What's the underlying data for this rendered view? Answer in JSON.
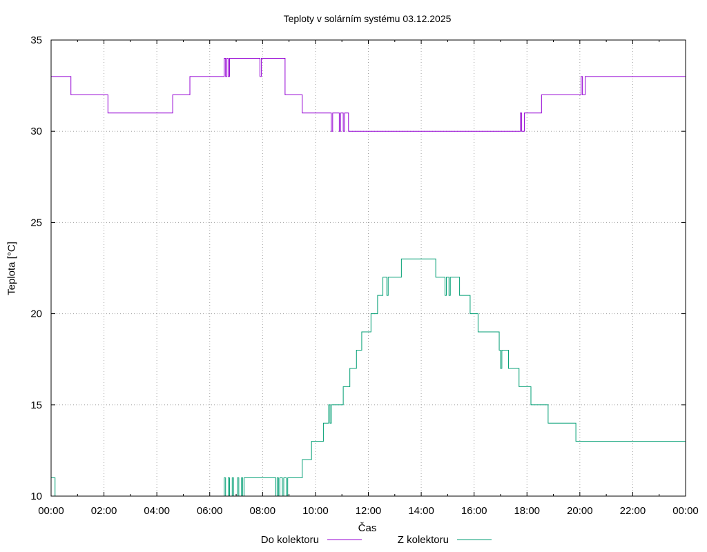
{
  "chart_data": {
    "type": "line",
    "title": "Teploty v solárním systému 03.12.2025",
    "xlabel": "Čas",
    "ylabel": "Teplota [°C]",
    "xlim": [
      0,
      24
    ],
    "ylim": [
      10,
      35
    ],
    "grid": true,
    "legend_position": "bottom-center",
    "x_ticks": [
      0,
      2,
      4,
      6,
      8,
      10,
      12,
      14,
      16,
      18,
      20,
      22,
      24
    ],
    "x_tick_labels": [
      "00:00",
      "02:00",
      "04:00",
      "06:00",
      "08:00",
      "10:00",
      "12:00",
      "14:00",
      "16:00",
      "18:00",
      "20:00",
      "22:00",
      "00:00"
    ],
    "y_ticks": [
      10,
      15,
      20,
      25,
      30,
      35
    ],
    "y_tick_labels": [
      "10",
      "15",
      "20",
      "25",
      "30",
      "35"
    ],
    "series": [
      {
        "name": "Do kolektoru",
        "color": "#9400d3",
        "step": true,
        "x": [
          0,
          0.75,
          2.15,
          4.6,
          5.25,
          6.55,
          6.6,
          6.65,
          6.7,
          6.75,
          7.9,
          7.95,
          8.85,
          9.5,
          10.6,
          10.65,
          10.9,
          10.95,
          11.05,
          11.1,
          11.25,
          11.3,
          17.75,
          17.8,
          17.9,
          18.55,
          20.05,
          20.1,
          20.2,
          24
        ],
        "y": [
          33,
          32,
          31,
          32,
          33,
          34,
          33,
          34,
          33,
          34,
          33,
          34,
          32,
          31,
          30,
          31,
          30,
          31,
          30,
          31,
          30,
          30,
          31,
          30,
          31,
          32,
          33,
          32,
          33,
          33
        ]
      },
      {
        "name": "Z kolektoru",
        "color": "#009e73",
        "step": true,
        "x": [
          0,
          0.15,
          6.55,
          6.6,
          6.7,
          6.75,
          6.85,
          6.9,
          7.05,
          7.1,
          7.2,
          7.25,
          7.3,
          8.5,
          8.55,
          8.6,
          8.65,
          8.75,
          8.8,
          8.9,
          8.95,
          9.5,
          9.85,
          10.3,
          10.5,
          10.55,
          10.6,
          11.05,
          11.3,
          11.55,
          11.75,
          12.1,
          12.35,
          12.55,
          12.7,
          12.75,
          12.8,
          13.25,
          14.55,
          14.9,
          14.95,
          15.05,
          15.1,
          15.45,
          15.85,
          16.15,
          16.95,
          17.0,
          17.05,
          17.3,
          17.7,
          18.15,
          18.8,
          19.85,
          24
        ],
        "y": [
          11,
          10,
          11,
          10,
          11,
          10,
          11,
          10,
          11,
          10,
          11,
          10,
          11,
          10,
          11,
          10,
          11,
          10,
          11,
          10,
          11,
          12,
          13,
          14,
          15,
          14,
          15,
          16,
          17,
          18,
          19,
          20,
          21,
          22,
          21,
          22,
          22,
          23,
          22,
          21,
          22,
          21,
          22,
          21,
          20,
          19,
          18,
          17,
          18,
          17,
          16,
          15,
          14,
          13,
          13
        ]
      }
    ]
  }
}
